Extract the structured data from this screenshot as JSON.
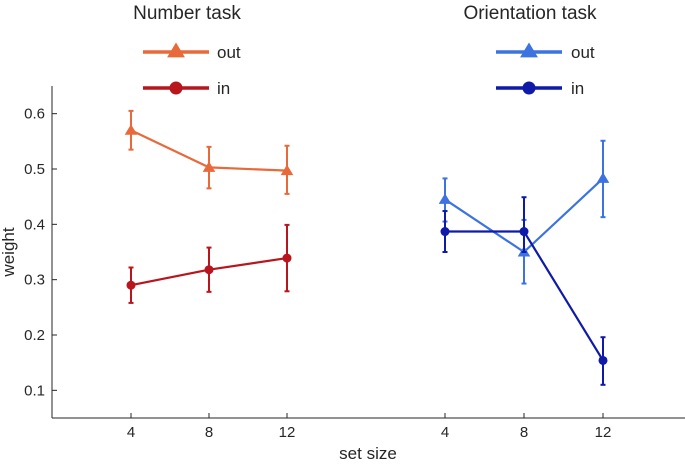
{
  "chart_data": {
    "type": "line",
    "ylabel": "weight",
    "xlabel": "set size",
    "ylim": [
      0.05,
      0.65
    ],
    "yticks": [
      0.1,
      0.2,
      0.3,
      0.4,
      0.5,
      0.6
    ],
    "ytick_labels": [
      "0.1",
      "0.2",
      "0.3",
      "0.4",
      "0.5",
      "0.6"
    ],
    "grid": false,
    "panels": [
      {
        "title": "Number task",
        "x": [
          4,
          8,
          12
        ],
        "xtick_labels": [
          "4",
          "8",
          "12"
        ],
        "series": [
          {
            "name": "out",
            "marker": "triangle",
            "color": "#e8693a",
            "values": [
              0.57,
              0.503,
              0.497
            ],
            "err_low": [
              0.535,
              0.465,
              0.455
            ],
            "err_high": [
              0.605,
              0.54,
              0.542
            ]
          },
          {
            "name": "in",
            "marker": "circle",
            "color": "#b8161c",
            "values": [
              0.29,
              0.318,
              0.339
            ],
            "err_low": [
              0.258,
              0.278,
              0.279
            ],
            "err_high": [
              0.322,
              0.358,
              0.399
            ]
          }
        ]
      },
      {
        "title": "Orientation task",
        "x": [
          4,
          8,
          12
        ],
        "xtick_labels": [
          "4",
          "8",
          "12"
        ],
        "series": [
          {
            "name": "out",
            "marker": "triangle",
            "color": "#3c73e0",
            "values": [
              0.445,
              0.35,
              0.483
            ],
            "err_low": [
              0.405,
              0.293,
              0.413
            ],
            "err_high": [
              0.483,
              0.408,
              0.551
            ]
          },
          {
            "name": "in",
            "marker": "circle",
            "color": "#0f1aa8",
            "values": [
              0.387,
              0.387,
              0.154
            ],
            "err_low": [
              0.35,
              0.35,
              0.11
            ],
            "err_high": [
              0.424,
              0.449,
              0.196
            ]
          }
        ]
      }
    ]
  }
}
